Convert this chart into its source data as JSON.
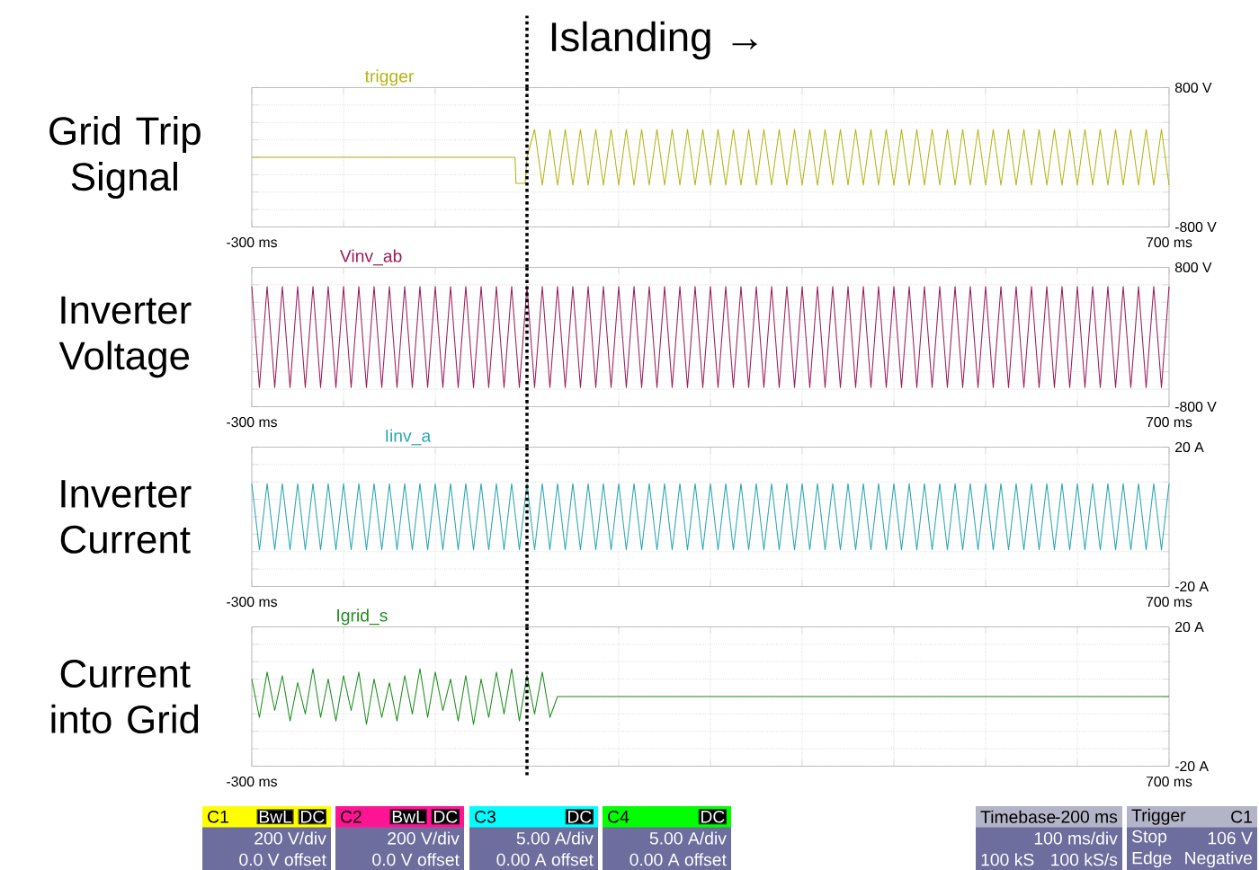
{
  "chart_data": [
    {
      "type": "line",
      "ylabel": "Grid Trip Signal",
      "xlim": [
        -300,
        700
      ],
      "ylim": [
        -800,
        800
      ],
      "grid": true,
      "xticks": [
        {
          "value": -300,
          "label": "-300 ms"
        },
        {
          "value": -200,
          "label": null
        },
        {
          "value": -100,
          "label": null
        },
        {
          "value": 0,
          "label": null
        },
        {
          "value": 100,
          "label": null
        },
        {
          "value": 200,
          "label": null
        },
        {
          "value": 300,
          "label": null
        },
        {
          "value": 400,
          "label": null
        },
        {
          "value": 500,
          "label": null
        },
        {
          "value": 600,
          "label": null
        },
        {
          "value": 700,
          "label": "700 ms"
        }
      ],
      "yticks": [
        {
          "value": -800,
          "label": "-800 V"
        },
        {
          "value": -600,
          "label": null
        },
        {
          "value": -400,
          "label": null
        },
        {
          "value": -200,
          "label": null
        },
        {
          "value": 0,
          "label": null
        },
        {
          "value": 200,
          "label": null
        },
        {
          "value": 400,
          "label": null
        },
        {
          "value": 600,
          "label": null
        },
        {
          "value": 800,
          "label": "800 V"
        }
      ],
      "series": [
        {
          "name": "trigger",
          "color": "#b4b414",
          "x": [
            -300,
            -13,
            -12,
            -2,
            0,
            8.3,
            16.7,
            25,
            33.3,
            41.7,
            50,
            58.3,
            66.7,
            75,
            83.3,
            91.7,
            100,
            108.3,
            116.7,
            125,
            133.3,
            141.7,
            150,
            158.3,
            166.7,
            175,
            183.3,
            191.7,
            200,
            208.3,
            216.7,
            225,
            233.3,
            241.7,
            250,
            258.3,
            266.7,
            275,
            283.3,
            291.7,
            300,
            308.3,
            316.7,
            325,
            333.3,
            341.7,
            350,
            358.3,
            366.7,
            375,
            383.3,
            391.7,
            400,
            408.3,
            416.7,
            425,
            433.3,
            441.7,
            450,
            458.3,
            466.7,
            475,
            483.3,
            491.7,
            500,
            508.3,
            516.7,
            525,
            533.3,
            541.7,
            550,
            558.3,
            566.7,
            575,
            583.3,
            591.7,
            600,
            608.3,
            616.7,
            625,
            633.3,
            641.7,
            650,
            658.3,
            666.7,
            675,
            683.3,
            691.7,
            700
          ],
          "values": [
            0,
            0,
            -300,
            -300,
            0,
            320,
            -320,
            320,
            -320,
            320,
            -320,
            320,
            -320,
            320,
            -320,
            320,
            -320,
            320,
            -320,
            320,
            -320,
            320,
            -320,
            320,
            -320,
            320,
            -320,
            320,
            -320,
            320,
            -320,
            320,
            -320,
            320,
            -320,
            320,
            -320,
            320,
            -320,
            320,
            -320,
            320,
            -320,
            320,
            -320,
            320,
            -320,
            320,
            -320,
            320,
            -320,
            320,
            -320,
            320,
            -320,
            320,
            -320,
            320,
            -320,
            320,
            -320,
            320,
            -320,
            320,
            -320,
            320,
            -320,
            320,
            -320,
            320,
            -320,
            320,
            -320,
            320,
            -320,
            320,
            -320,
            320,
            -320,
            320,
            -320,
            320,
            -320,
            320,
            -320,
            320,
            -320,
            320,
            -320
          ]
        }
      ],
      "ref_lines": [
        {
          "axis": "x",
          "value": 0,
          "label": "Islanding →",
          "line_style": "dotted",
          "color": "#000000"
        }
      ],
      "annotations": [
        "C1",
        "BwL",
        "DC",
        "200 V/div",
        "0.0 V offset"
      ]
    },
    {
      "type": "line",
      "ylabel": "Inverter Voltage",
      "xlim": [
        -300,
        700
      ],
      "ylim": [
        -800,
        800
      ],
      "grid": true,
      "xticks": [
        {
          "value": -300,
          "label": "-300 ms"
        },
        {
          "value": -200,
          "label": null
        },
        {
          "value": -100,
          "label": null
        },
        {
          "value": 0,
          "label": null
        },
        {
          "value": 100,
          "label": null
        },
        {
          "value": 200,
          "label": null
        },
        {
          "value": 300,
          "label": null
        },
        {
          "value": 400,
          "label": null
        },
        {
          "value": 500,
          "label": null
        },
        {
          "value": 600,
          "label": null
        },
        {
          "value": 700,
          "label": "700 ms"
        }
      ],
      "yticks": [
        {
          "value": -800,
          "label": "-800 V"
        },
        {
          "value": -600,
          "label": null
        },
        {
          "value": -400,
          "label": null
        },
        {
          "value": -200,
          "label": null
        },
        {
          "value": 0,
          "label": null
        },
        {
          "value": 200,
          "label": null
        },
        {
          "value": 400,
          "label": null
        },
        {
          "value": 600,
          "label": null
        },
        {
          "value": 800,
          "label": "800 V"
        }
      ],
      "series": [
        {
          "name": "Vinv_ab",
          "color": "#9c1c5c",
          "x": [
            -300,
            -291.7,
            -283.3,
            -275,
            -266.7,
            -258.3,
            -250,
            -241.7,
            -233.3,
            -225,
            -216.7,
            -208.3,
            -200,
            -191.7,
            -183.3,
            -175,
            -166.7,
            -158.3,
            -150,
            -141.7,
            -133.3,
            -125,
            -116.7,
            -108.3,
            -100,
            -91.7,
            -83.3,
            -75,
            -66.7,
            -58.3,
            -50,
            -41.7,
            -33.3,
            -25,
            -16.7,
            -8.3,
            0,
            8.3,
            16.7,
            25,
            33.3,
            41.7,
            50,
            58.3,
            66.7,
            75,
            83.3,
            91.7,
            100,
            108.3,
            116.7,
            125,
            133.3,
            141.7,
            150,
            158.3,
            166.7,
            175,
            183.3,
            191.7,
            200,
            208.3,
            216.7,
            225,
            233.3,
            241.7,
            250,
            258.3,
            266.7,
            275,
            283.3,
            291.7,
            300,
            308.3,
            316.7,
            325,
            333.3,
            341.7,
            350,
            358.3,
            366.7,
            375,
            383.3,
            391.7,
            400,
            408.3,
            416.7,
            425,
            433.3,
            441.7,
            450,
            458.3,
            466.7,
            475,
            483.3,
            491.7,
            500,
            508.3,
            516.7,
            525,
            533.3,
            541.7,
            550,
            558.3,
            566.7,
            575,
            583.3,
            591.7,
            600,
            608.3,
            616.7,
            625,
            633.3,
            641.7,
            650,
            658.3,
            666.7,
            675,
            683.3,
            691.7,
            700
          ],
          "values": [
            580,
            -580,
            580,
            -580,
            580,
            -580,
            580,
            -580,
            580,
            -580,
            580,
            -580,
            580,
            -580,
            580,
            -580,
            580,
            -580,
            580,
            -580,
            580,
            -580,
            580,
            -580,
            580,
            -580,
            580,
            -580,
            580,
            -580,
            580,
            -580,
            580,
            -580,
            580,
            -580,
            580,
            -580,
            580,
            -580,
            580,
            -580,
            580,
            -580,
            580,
            -580,
            580,
            -580,
            580,
            -580,
            580,
            -580,
            580,
            -580,
            580,
            -580,
            580,
            -580,
            580,
            -580,
            580,
            -580,
            580,
            -580,
            580,
            -580,
            580,
            -580,
            580,
            -580,
            580,
            -580,
            580,
            -580,
            580,
            -580,
            580,
            -580,
            580,
            -580,
            580,
            -580,
            580,
            -580,
            580,
            -580,
            580,
            -580,
            580,
            -580,
            580,
            -580,
            580,
            -580,
            580,
            -580,
            580,
            -580,
            580,
            -580,
            580,
            -580,
            580,
            -580,
            580,
            -580,
            580,
            -580,
            580,
            -580,
            580,
            -580,
            580,
            -580,
            580,
            -580,
            580,
            -580,
            580,
            -580,
            580
          ]
        }
      ],
      "ref_lines": [
        {
          "axis": "x",
          "value": 0,
          "line_style": "dotted",
          "color": "#000000"
        }
      ],
      "annotations": [
        "C2",
        "BwL",
        "DC",
        "200 V/div",
        "0.0 V offset"
      ]
    },
    {
      "type": "line",
      "ylabel": "Inverter Current",
      "xlim": [
        -300,
        700
      ],
      "ylim": [
        -20,
        20
      ],
      "grid": true,
      "xticks": [
        {
          "value": -300,
          "label": "-300 ms"
        },
        {
          "value": -200,
          "label": null
        },
        {
          "value": -100,
          "label": null
        },
        {
          "value": 0,
          "label": null
        },
        {
          "value": 100,
          "label": null
        },
        {
          "value": 200,
          "label": null
        },
        {
          "value": 300,
          "label": null
        },
        {
          "value": 400,
          "label": null
        },
        {
          "value": 500,
          "label": null
        },
        {
          "value": 600,
          "label": null
        },
        {
          "value": 700,
          "label": "700 ms"
        }
      ],
      "yticks": [
        {
          "value": -20,
          "label": "-20 A"
        },
        {
          "value": -15,
          "label": null
        },
        {
          "value": -10,
          "label": null
        },
        {
          "value": -5,
          "label": null
        },
        {
          "value": 0,
          "label": null
        },
        {
          "value": 5,
          "label": null
        },
        {
          "value": 10,
          "label": null
        },
        {
          "value": 15,
          "label": null
        },
        {
          "value": 20,
          "label": "20 A"
        }
      ],
      "series": [
        {
          "name": "Iinv_a",
          "color": "#2aa6b4",
          "x": [
            -300,
            -291.7,
            -283.3,
            -275,
            -266.7,
            -258.3,
            -250,
            -241.7,
            -233.3,
            -225,
            -216.7,
            -208.3,
            -200,
            -191.7,
            -183.3,
            -175,
            -166.7,
            -158.3,
            -150,
            -141.7,
            -133.3,
            -125,
            -116.7,
            -108.3,
            -100,
            -91.7,
            -83.3,
            -75,
            -66.7,
            -58.3,
            -50,
            -41.7,
            -33.3,
            -25,
            -16.7,
            -8.3,
            0,
            8.3,
            16.7,
            25,
            33.3,
            41.7,
            50,
            58.3,
            66.7,
            75,
            83.3,
            91.7,
            100,
            108.3,
            116.7,
            125,
            133.3,
            141.7,
            150,
            158.3,
            166.7,
            175,
            183.3,
            191.7,
            200,
            208.3,
            216.7,
            225,
            233.3,
            241.7,
            250,
            258.3,
            266.7,
            275,
            283.3,
            291.7,
            300,
            308.3,
            316.7,
            325,
            333.3,
            341.7,
            350,
            358.3,
            366.7,
            375,
            383.3,
            391.7,
            400,
            408.3,
            416.7,
            425,
            433.3,
            441.7,
            450,
            458.3,
            466.7,
            475,
            483.3,
            491.7,
            500,
            508.3,
            516.7,
            525,
            533.3,
            541.7,
            550,
            558.3,
            566.7,
            575,
            583.3,
            591.7,
            600,
            608.3,
            616.7,
            625,
            633.3,
            641.7,
            650,
            658.3,
            666.7,
            675,
            683.3,
            691.7,
            700
          ],
          "values": [
            9.5,
            -9.5,
            9.5,
            -9.5,
            9.5,
            -9.5,
            9.5,
            -9.5,
            9.5,
            -9.5,
            9.5,
            -9.5,
            9.5,
            -9.5,
            9.5,
            -9.5,
            9.5,
            -9.5,
            9.5,
            -9.5,
            9.5,
            -9.5,
            9.5,
            -9.5,
            9.5,
            -9.5,
            9.5,
            -9.5,
            9.5,
            -9.5,
            9.5,
            -9.5,
            9.5,
            -9.5,
            9.5,
            -9.5,
            9.5,
            -9.5,
            9.5,
            -9.5,
            9.5,
            -9.5,
            9.5,
            -9.5,
            9.5,
            -9.5,
            9.5,
            -9.5,
            9.5,
            -9.5,
            9.5,
            -9.5,
            9.5,
            -9.5,
            9.5,
            -9.5,
            9.5,
            -9.5,
            9.5,
            -9.5,
            9.5,
            -9.5,
            9.5,
            -9.5,
            9.5,
            -9.5,
            9.5,
            -9.5,
            9.5,
            -9.5,
            9.5,
            -9.5,
            9.5,
            -9.5,
            9.5,
            -9.5,
            9.5,
            -9.5,
            9.5,
            -9.5,
            9.5,
            -9.5,
            9.5,
            -9.5,
            9.5,
            -9.5,
            9.5,
            -9.5,
            9.5,
            -9.5,
            9.5,
            -9.5,
            9.5,
            -9.5,
            9.5,
            -9.5,
            9.5,
            -9.5,
            9.5,
            -9.5,
            9.5,
            -9.5,
            9.5,
            -9.5,
            9.5,
            -9.5,
            9.5,
            -9.5,
            9.5,
            -9.5,
            9.5,
            -9.5,
            9.5,
            -9.5,
            9.5,
            -9.5,
            9.5,
            -9.5,
            9.5,
            -9.5,
            9.5
          ]
        }
      ],
      "ref_lines": [
        {
          "axis": "x",
          "value": 0,
          "line_style": "dotted",
          "color": "#000000"
        }
      ],
      "annotations": [
        "C3",
        "DC",
        "5.00 A/div",
        "0.00 A offset"
      ]
    },
    {
      "type": "line",
      "ylabel": "Current into Grid",
      "xlim": [
        -300,
        700
      ],
      "ylim": [
        -20,
        20
      ],
      "grid": true,
      "xticks": [
        {
          "value": -300,
          "label": "-300 ms"
        },
        {
          "value": -200,
          "label": null
        },
        {
          "value": -100,
          "label": null
        },
        {
          "value": 0,
          "label": null
        },
        {
          "value": 100,
          "label": null
        },
        {
          "value": 200,
          "label": null
        },
        {
          "value": 300,
          "label": null
        },
        {
          "value": 400,
          "label": null
        },
        {
          "value": 500,
          "label": null
        },
        {
          "value": 600,
          "label": null
        },
        {
          "value": 700,
          "label": "700 ms"
        }
      ],
      "yticks": [
        {
          "value": -20,
          "label": "-20 A"
        },
        {
          "value": -15,
          "label": null
        },
        {
          "value": -10,
          "label": null
        },
        {
          "value": -5,
          "label": null
        },
        {
          "value": 0,
          "label": null
        },
        {
          "value": 5,
          "label": null
        },
        {
          "value": 10,
          "label": null
        },
        {
          "value": 15,
          "label": null
        },
        {
          "value": 20,
          "label": "20 A"
        }
      ],
      "series": [
        {
          "name": "Igrid_s",
          "color": "#1f8f1f",
          "x": [
            -300,
            -291.7,
            -283.3,
            -275,
            -266.7,
            -258.3,
            -250,
            -241.7,
            -233.3,
            -225,
            -216.7,
            -208.3,
            -200,
            -191.7,
            -183.3,
            -175,
            -166.7,
            -158.3,
            -150,
            -141.7,
            -133.3,
            -125,
            -116.7,
            -108.3,
            -100,
            -91.7,
            -83.3,
            -75,
            -66.7,
            -58.3,
            -50,
            -41.7,
            -33.3,
            -25,
            -16.7,
            -8.3,
            0,
            8.3,
            16.7,
            25,
            33.3,
            700
          ],
          "values": [
            5,
            -6,
            7,
            -4,
            6,
            -7,
            4,
            -5,
            8,
            -6,
            5,
            -7,
            6,
            -4,
            7,
            -8,
            5,
            -6,
            4,
            -7,
            6,
            -5,
            8,
            -6,
            7,
            -4,
            5,
            -7,
            6,
            -8,
            5,
            -6,
            7,
            -5,
            8,
            -7,
            6,
            -5,
            7,
            -6,
            0,
            0
          ]
        }
      ],
      "ref_lines": [
        {
          "axis": "x",
          "value": 0,
          "line_style": "dotted",
          "color": "#000000"
        }
      ],
      "annotations": [
        "C4",
        "DC",
        "5.00 A/div",
        "0.00 A offset",
        "Timebase",
        "-200 ms",
        "100 ms/div",
        "100 kS",
        "100 kS/s",
        "Trigger",
        "C1",
        "Stop",
        "106 V",
        "Edge",
        "Negative"
      ]
    }
  ]
}
